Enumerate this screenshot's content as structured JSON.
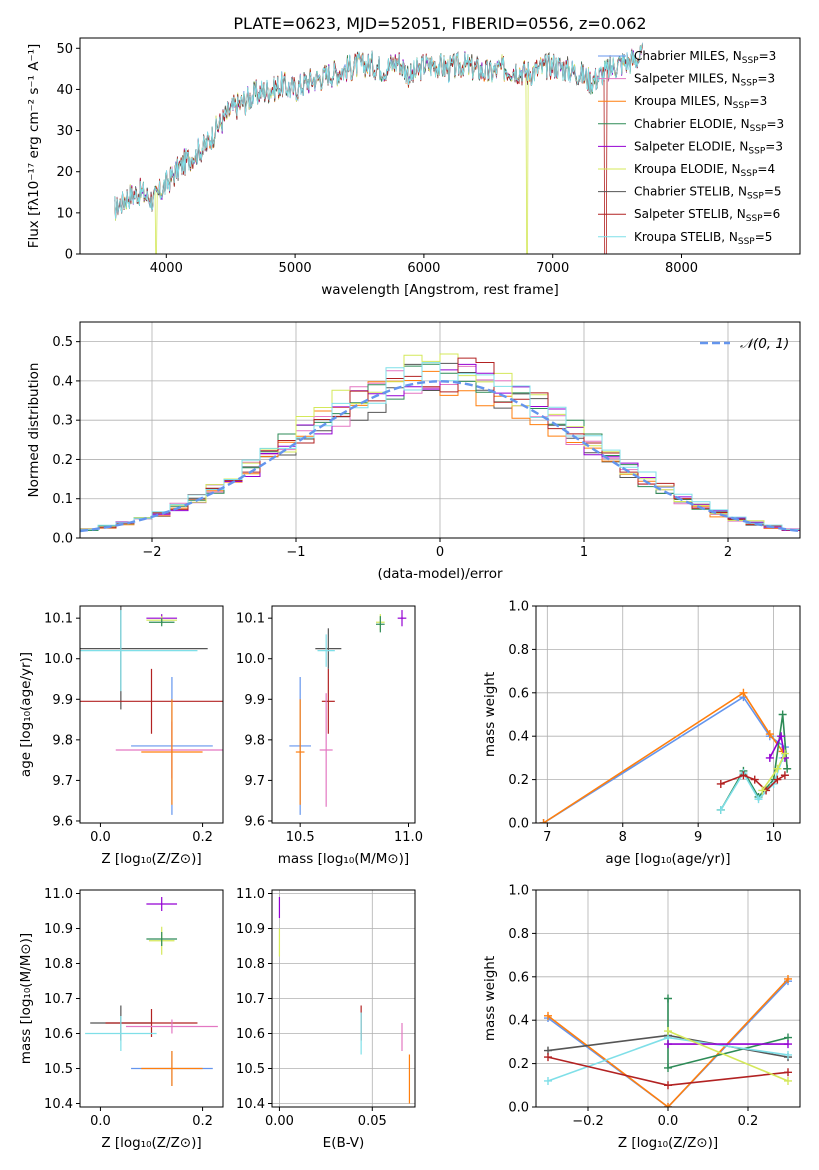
{
  "chart_data": [
    {
      "id": "spectrum",
      "type": "line",
      "title": "PLATE=0623, MJD=52051, FIBERID=0556, z=0.062",
      "xlabel": "wavelength [Angstrom, rest frame]",
      "ylabel": "Flux [fλ10⁻¹⁷ erg cm⁻² s⁻¹ A⁻¹]",
      "xlim": [
        3330,
        8920
      ],
      "ylim": [
        0,
        52.5
      ],
      "xticks": [
        "4000",
        "5000",
        "6000",
        "7000",
        "8000"
      ],
      "yticks": [
        "0",
        "10",
        "20",
        "30",
        "40",
        "50"
      ],
      "grid": false,
      "legend_position": "right",
      "continuum": {
        "x": [
          3600,
          3700,
          3800,
          3900,
          4000,
          4100,
          4200,
          4300,
          4400,
          4500,
          4600,
          4700,
          4800,
          4900,
          5000,
          5100,
          5200,
          5300,
          5400,
          5500,
          5600,
          5700,
          5800,
          5900,
          6000,
          6100,
          6200,
          6300,
          6400,
          6500,
          6600,
          6700,
          6800,
          6900,
          7000,
          7100,
          7200,
          7300,
          7400,
          7500,
          7600,
          7700
        ],
        "y": [
          11,
          14,
          15,
          13,
          17,
          21,
          24,
          26,
          31,
          35,
          37,
          39,
          40,
          41,
          40,
          42,
          43,
          44,
          45,
          46,
          46,
          45,
          47,
          43,
          46,
          46,
          45,
          46,
          45,
          44,
          45,
          45,
          44,
          45,
          46,
          45,
          44,
          42,
          44,
          46,
          47,
          48
        ]
      },
      "series": [
        {
          "name": "Chabrier MILES",
          "nssp": "3",
          "color": "#6495ed"
        },
        {
          "name": "Salpeter MILES",
          "nssp": "3",
          "color": "#e377c2"
        },
        {
          "name": "Kroupa MILES",
          "nssp": "3",
          "color": "#ff7f0e"
        },
        {
          "name": "Chabrier ELODIE",
          "nssp": "3",
          "color": "#2e8b57"
        },
        {
          "name": "Salpeter ELODIE",
          "nssp": "3",
          "color": "#9400d3"
        },
        {
          "name": "Kroupa ELODIE",
          "nssp": "4",
          "color": "#d4e85a"
        },
        {
          "name": "Chabrier STELIB",
          "nssp": "5",
          "color": "#555555"
        },
        {
          "name": "Salpeter STELIB",
          "nssp": "6",
          "color": "#b22222"
        },
        {
          "name": "Kroupa STELIB",
          "nssp": "5",
          "color": "#7fdfe8"
        }
      ]
    },
    {
      "id": "residuals",
      "type": "line",
      "xlabel": "(data-model)/error",
      "ylabel": "Normed distribution",
      "xlim": [
        -2.5,
        2.5
      ],
      "ylim": [
        0,
        0.55
      ],
      "xticks": [
        "−2",
        "−1",
        "0",
        "1",
        "2"
      ],
      "yticks": [
        "0.0",
        "0.1",
        "0.2",
        "0.3",
        "0.4",
        "0.5"
      ],
      "grid": true,
      "legend_position": "top-right",
      "legend_label": "𝒩(0, 1)",
      "reference_color": "#6495ed",
      "bin_width": 0.125,
      "series": [
        {
          "color": "#555555",
          "amp": 0.4,
          "seed": 1
        },
        {
          "color": "#ff7f0e",
          "amp": 0.4,
          "seed": 2
        },
        {
          "color": "#e377c2",
          "amp": 0.41,
          "seed": 3
        },
        {
          "color": "#2e8b57",
          "amp": 0.42,
          "seed": 4
        },
        {
          "color": "#9400d3",
          "amp": 0.41,
          "seed": 5
        },
        {
          "color": "#d4e85a",
          "amp": 0.43,
          "seed": 6
        },
        {
          "color": "#b22222",
          "amp": 0.42,
          "seed": 7
        },
        {
          "color": "#7fdfe8",
          "amp": 0.43,
          "seed": 8
        }
      ]
    },
    {
      "id": "age-vs-z",
      "type": "scatter",
      "xlabel": "Z [log₁₀(Z/Z⊙)]",
      "ylabel": "age  [log₁₀(age/yr)]",
      "xlim": [
        -0.04,
        0.24
      ],
      "ylim": [
        9.595,
        10.13
      ],
      "xticks": [
        "0.0",
        "0.2"
      ],
      "yticks": [
        "9.6",
        "9.7",
        "9.8",
        "9.9",
        "10.0",
        "10.1"
      ],
      "grid": false,
      "points": [
        {
          "x": 0.12,
          "y": 10.1,
          "xe": 0.03,
          "ye": 0.01,
          "color": "#9400d3"
        },
        {
          "x": 0.12,
          "y": 10.095,
          "xe": 0.03,
          "ye": 0.01,
          "color": "#d4e85a"
        },
        {
          "x": 0.12,
          "y": 10.09,
          "xe": 0.025,
          "ye": 0.01,
          "color": "#2e8b57"
        },
        {
          "x": 0.04,
          "y": 10.025,
          "xe": 0.17,
          "ye": 0.15,
          "color": "#555555"
        },
        {
          "x": 0.04,
          "y": 10.02,
          "xe": 0.15,
          "ye": 0.1,
          "color": "#7fdfe8"
        },
        {
          "x": 0.1,
          "y": 9.895,
          "xe": 0.19,
          "ye": 0.08,
          "color": "#b22222"
        },
        {
          "x": 0.14,
          "y": 9.785,
          "xe": 0.08,
          "ye": 0.17,
          "color": "#6495ed"
        },
        {
          "x": 0.14,
          "y": 9.775,
          "xe": 0.11,
          "ye": 0.07,
          "color": "#e377c2"
        },
        {
          "x": 0.14,
          "y": 9.77,
          "xe": 0.06,
          "ye": 0.13,
          "color": "#ff7f0e"
        }
      ]
    },
    {
      "id": "age-vs-mass",
      "type": "scatter",
      "xlabel": "mass [log₁₀(M/M⊙)]",
      "ylabel": "",
      "xlim": [
        10.37,
        11.03
      ],
      "ylim": [
        9.595,
        10.13
      ],
      "xticks": [
        "10.5",
        "11.0"
      ],
      "yticks": [
        "9.6",
        "9.7",
        "9.8",
        "9.9",
        "10.0",
        "10.1"
      ],
      "grid": false,
      "points": [
        {
          "x": 10.97,
          "y": 10.1,
          "xe": 0.02,
          "ye": 0.02,
          "color": "#9400d3"
        },
        {
          "x": 10.87,
          "y": 10.09,
          "xe": 0.02,
          "ye": 0.02,
          "color": "#d4e85a"
        },
        {
          "x": 10.87,
          "y": 10.085,
          "xe": 0.02,
          "ye": 0.02,
          "color": "#2e8b57"
        },
        {
          "x": 10.63,
          "y": 10.025,
          "xe": 0.06,
          "ye": 0.05,
          "color": "#555555"
        },
        {
          "x": 10.62,
          "y": 10.02,
          "xe": 0.04,
          "ye": 0.04,
          "color": "#7fdfe8"
        },
        {
          "x": 10.63,
          "y": 9.895,
          "xe": 0.03,
          "ye": 0.08,
          "color": "#b22222"
        },
        {
          "x": 10.5,
          "y": 9.785,
          "xe": 0.05,
          "ye": 0.17,
          "color": "#6495ed"
        },
        {
          "x": 10.62,
          "y": 9.775,
          "xe": 0.03,
          "ye": 0.14,
          "color": "#e377c2"
        },
        {
          "x": 10.5,
          "y": 9.77,
          "xe": 0.02,
          "ye": 0.13,
          "color": "#ff7f0e"
        }
      ]
    },
    {
      "id": "weight-vs-age",
      "type": "line",
      "xlabel": "age  [log₁₀(age/yr)]",
      "ylabel": "mass weight",
      "xlim": [
        6.85,
        10.35
      ],
      "ylim": [
        0,
        1.0
      ],
      "xticks": [
        "7",
        "8",
        "9",
        "10"
      ],
      "yticks": [
        "0.0",
        "0.2",
        "0.4",
        "0.6",
        "0.8",
        "1.0"
      ],
      "grid": true,
      "series": [
        {
          "color": "#6495ed",
          "x": [
            6.95,
            9.6,
            9.95,
            10.15
          ],
          "y": [
            0.0,
            0.58,
            0.4,
            0.35
          ]
        },
        {
          "color": "#ff7f0e",
          "x": [
            6.95,
            9.6,
            9.95,
            10.12
          ],
          "y": [
            0.0,
            0.6,
            0.41,
            0.33
          ]
        },
        {
          "color": "#2e8b57",
          "x": [
            9.3,
            9.6,
            9.8,
            10.0,
            10.12,
            10.18
          ],
          "y": [
            0.06,
            0.24,
            0.12,
            0.2,
            0.5,
            0.25
          ]
        },
        {
          "color": "#7fdfe8",
          "x": [
            9.3,
            9.6,
            9.8,
            10.0,
            10.12
          ],
          "y": [
            0.06,
            0.23,
            0.11,
            0.18,
            0.3
          ]
        },
        {
          "color": "#b22222",
          "x": [
            9.3,
            9.6,
            9.75,
            9.9,
            10.05,
            10.15
          ],
          "y": [
            0.18,
            0.22,
            0.2,
            0.15,
            0.2,
            0.22
          ]
        },
        {
          "color": "#9400d3",
          "x": [
            9.95,
            10.1,
            10.15
          ],
          "y": [
            0.3,
            0.4,
            0.3
          ]
        },
        {
          "color": "#d4e85a",
          "x": [
            9.85,
            10.05,
            10.15
          ],
          "y": [
            0.15,
            0.25,
            0.32
          ]
        }
      ]
    },
    {
      "id": "mass-vs-z",
      "type": "scatter",
      "xlabel": "Z [log₁₀(Z/Z⊙)]",
      "ylabel": "mass [log₁₀(M/M⊙)]",
      "xlim": [
        -0.04,
        0.24
      ],
      "ylim": [
        10.39,
        11.01
      ],
      "xticks": [
        "0.0",
        "0.2"
      ],
      "yticks": [
        "10.4",
        "10.5",
        "10.6",
        "10.7",
        "10.8",
        "10.9",
        "11.0"
      ],
      "grid": false,
      "points": [
        {
          "x": 0.12,
          "y": 10.97,
          "xe": 0.03,
          "ye": 0.02,
          "color": "#9400d3"
        },
        {
          "x": 0.12,
          "y": 10.865,
          "xe": 0.025,
          "ye": 0.04,
          "color": "#d4e85a"
        },
        {
          "x": 0.12,
          "y": 10.87,
          "xe": 0.03,
          "ye": 0.02,
          "color": "#2e8b57"
        },
        {
          "x": 0.04,
          "y": 10.63,
          "xe": 0.06,
          "ye": 0.05,
          "color": "#555555"
        },
        {
          "x": 0.1,
          "y": 10.63,
          "xe": 0.09,
          "ye": 0.04,
          "color": "#b22222"
        },
        {
          "x": 0.04,
          "y": 10.6,
          "xe": 0.07,
          "ye": 0.05,
          "color": "#7fdfe8"
        },
        {
          "x": 0.14,
          "y": 10.62,
          "xe": 0.09,
          "ye": 0.02,
          "color": "#e377c2"
        },
        {
          "x": 0.14,
          "y": 10.5,
          "xe": 0.08,
          "ye": 0.05,
          "color": "#6495ed"
        },
        {
          "x": 0.14,
          "y": 10.5,
          "xe": 0.06,
          "ye": 0.05,
          "color": "#ff7f0e"
        }
      ]
    },
    {
      "id": "mass-vs-ebv",
      "type": "scatter",
      "xlabel": "E(B-V)",
      "ylabel": "",
      "xlim": [
        -0.004,
        0.073
      ],
      "ylim": [
        10.39,
        11.01
      ],
      "xticks": [
        "0.00",
        "0.05"
      ],
      "yticks": [
        "10.4",
        "10.5",
        "10.6",
        "10.7",
        "10.8",
        "10.9",
        "11.0"
      ],
      "grid": true,
      "points": [
        {
          "x": 0.0,
          "y": 10.96,
          "xe": 0.0,
          "ye": 0.03,
          "color": "#9400d3"
        },
        {
          "x": 0.0,
          "y": 10.86,
          "xe": 0.0,
          "ye": 0.04,
          "color": "#d4e85a"
        },
        {
          "x": 0.044,
          "y": 10.63,
          "xe": 0.0,
          "ye": 0.05,
          "color": "#b22222"
        },
        {
          "x": 0.044,
          "y": 10.6,
          "xe": 0.0,
          "ye": 0.06,
          "color": "#7fdfe8"
        },
        {
          "x": 0.066,
          "y": 10.59,
          "xe": 0.0,
          "ye": 0.04,
          "color": "#e377c2"
        },
        {
          "x": 0.07,
          "y": 10.47,
          "xe": 0.0,
          "ye": 0.07,
          "color": "#ff7f0e"
        }
      ]
    },
    {
      "id": "weight-vs-z",
      "type": "line",
      "xlabel": "Z [log₁₀(Z/Z⊙)]",
      "ylabel": "mass weight",
      "xlim": [
        -0.33,
        0.33
      ],
      "ylim": [
        0,
        1.0
      ],
      "xticks": [
        "−0.2",
        "0.0",
        "0.2"
      ],
      "yticks": [
        "0.0",
        "0.2",
        "0.4",
        "0.6",
        "0.8",
        "1.0"
      ],
      "grid": true,
      "series": [
        {
          "color": "#6495ed",
          "x": [
            -0.3,
            0.0,
            0.3
          ],
          "y": [
            0.41,
            0.0,
            0.58
          ]
        },
        {
          "color": "#ff7f0e",
          "x": [
            -0.3,
            0.0,
            0.3
          ],
          "y": [
            0.42,
            0.0,
            0.59
          ]
        },
        {
          "color": "#555555",
          "x": [
            -0.3,
            0.0,
            0.3
          ],
          "y": [
            0.26,
            0.33,
            0.23
          ]
        },
        {
          "color": "#2e8b57",
          "x": [
            0.0,
            0.0,
            0.3
          ],
          "y": [
            0.5,
            0.18,
            0.32
          ]
        },
        {
          "color": "#7fdfe8",
          "x": [
            -0.3,
            0.0,
            0.3
          ],
          "y": [
            0.12,
            0.32,
            0.24
          ]
        },
        {
          "color": "#b22222",
          "x": [
            -0.3,
            0.0,
            0.3
          ],
          "y": [
            0.23,
            0.1,
            0.16
          ]
        },
        {
          "color": "#9400d3",
          "x": [
            0.0,
            0.3
          ],
          "y": [
            0.29,
            0.29
          ]
        },
        {
          "color": "#d4e85a",
          "x": [
            0.0,
            0.3
          ],
          "y": [
            0.35,
            0.12
          ]
        }
      ]
    }
  ]
}
